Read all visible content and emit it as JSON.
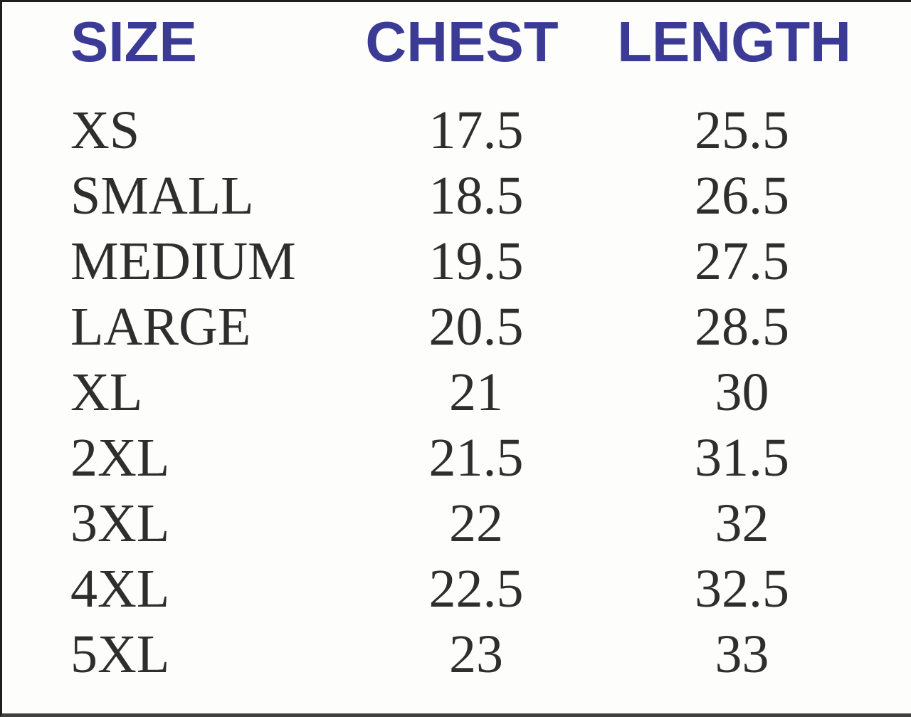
{
  "colors": {
    "header_text": "#3b3b96",
    "body_text": "#2e2e2e",
    "background": "#fdfdfc",
    "border_dark": "#1f1f1f",
    "border_bottom": "#3f3f3f"
  },
  "table": {
    "headers": {
      "size": "SIZE",
      "chest": "CHEST",
      "length": "LENGTH"
    },
    "rows": [
      {
        "size": "XS",
        "chest": "17.5",
        "length": "25.5"
      },
      {
        "size": "SMALL",
        "chest": "18.5",
        "length": "26.5"
      },
      {
        "size": "MEDIUM",
        "chest": "19.5",
        "length": "27.5"
      },
      {
        "size": "LARGE",
        "chest": "20.5",
        "length": "28.5"
      },
      {
        "size": "XL",
        "chest": "21",
        "length": "30"
      },
      {
        "size": "2XL",
        "chest": "21.5",
        "length": "31.5"
      },
      {
        "size": "3XL",
        "chest": "22",
        "length": "32"
      },
      {
        "size": "4XL",
        "chest": "22.5",
        "length": "32.5"
      },
      {
        "size": "5XL",
        "chest": "23",
        "length": "33"
      }
    ]
  },
  "chart_data": {
    "type": "table",
    "columns": [
      "SIZE",
      "CHEST",
      "LENGTH"
    ],
    "rows": [
      [
        "XS",
        17.5,
        25.5
      ],
      [
        "SMALL",
        18.5,
        26.5
      ],
      [
        "MEDIUM",
        19.5,
        27.5
      ],
      [
        "LARGE",
        20.5,
        28.5
      ],
      [
        "XL",
        21,
        30
      ],
      [
        "2XL",
        21.5,
        31.5
      ],
      [
        "3XL",
        22,
        32
      ],
      [
        "4XL",
        22.5,
        32.5
      ],
      [
        "5XL",
        23,
        33
      ]
    ]
  }
}
